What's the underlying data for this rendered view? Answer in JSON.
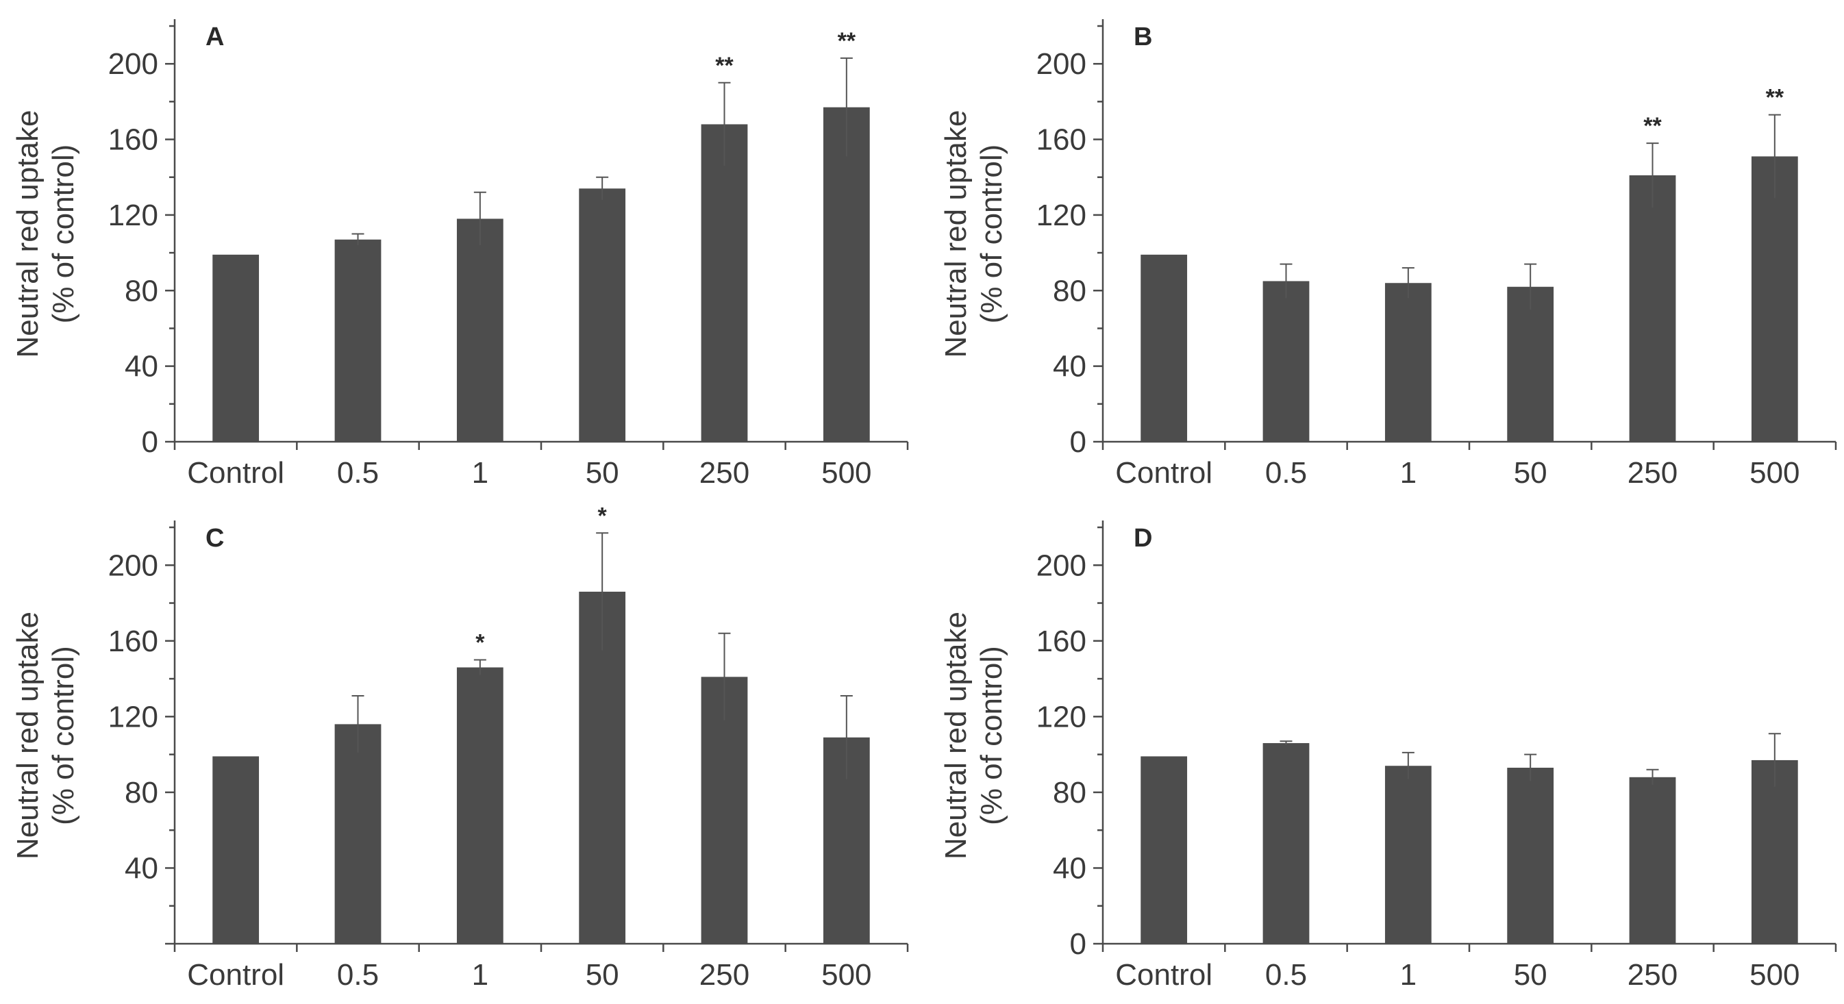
{
  "chart_data": [
    {
      "panel": "A",
      "type": "bar",
      "ylabel": [
        "Neutral red uptake",
        "(% of control)"
      ],
      "xlabel": "",
      "categories": [
        "Control",
        "0.5",
        "1",
        "50",
        "250",
        "500"
      ],
      "values": [
        99,
        107,
        118,
        134,
        168,
        177
      ],
      "errors": [
        0,
        3,
        14,
        6,
        22,
        26
      ],
      "significance": [
        "",
        "",
        "",
        "",
        "**",
        "**"
      ],
      "ylim": [
        0,
        220
      ],
      "yticks": [
        "0",
        "40",
        "80",
        "120",
        "160",
        "200"
      ],
      "color": "#4d4d4d"
    },
    {
      "panel": "B",
      "type": "bar",
      "ylabel": [
        "Neutral red uptake",
        "(% of control)"
      ],
      "xlabel": "",
      "categories": [
        "Control",
        "0.5",
        "1",
        "50",
        "250",
        "500"
      ],
      "values": [
        99,
        85,
        84,
        82,
        141,
        151
      ],
      "errors": [
        0,
        9,
        8,
        12,
        17,
        22
      ],
      "significance": [
        "",
        "",
        "",
        "",
        "**",
        "**"
      ],
      "ylim": [
        0,
        220
      ],
      "yticks": [
        "0",
        "40",
        "80",
        "120",
        "160",
        "200"
      ],
      "color": "#4d4d4d"
    },
    {
      "panel": "C",
      "type": "bar",
      "ylabel": [
        "Neutral red uptake",
        "(% of control)"
      ],
      "xlabel": "",
      "categories": [
        "Control",
        "0.5",
        "1",
        "50",
        "250",
        "500"
      ],
      "values": [
        99,
        116,
        146,
        186,
        141,
        109
      ],
      "errors": [
        0,
        15,
        4,
        31,
        23,
        22
      ],
      "significance": [
        "",
        "",
        "*",
        "*",
        "",
        ""
      ],
      "ylim": [
        0,
        220
      ],
      "yticks": [
        "",
        "40",
        "80",
        "120",
        "160",
        "200"
      ],
      "color": "#4d4d4d"
    },
    {
      "panel": "D",
      "type": "bar",
      "ylabel": [
        "Neutral red uptake",
        "(% of control)"
      ],
      "xlabel": "",
      "categories": [
        "Control",
        "0.5",
        "1",
        "50",
        "250",
        "500"
      ],
      "values": [
        99,
        106,
        94,
        93,
        88,
        97
      ],
      "errors": [
        0,
        1,
        7,
        7,
        4,
        14
      ],
      "significance": [
        "",
        "",
        "",
        "",
        "",
        ""
      ],
      "ylim": [
        0,
        220
      ],
      "yticks": [
        "0",
        "40",
        "80",
        "120",
        "160",
        "200"
      ],
      "color": "#4d4d4d"
    }
  ]
}
